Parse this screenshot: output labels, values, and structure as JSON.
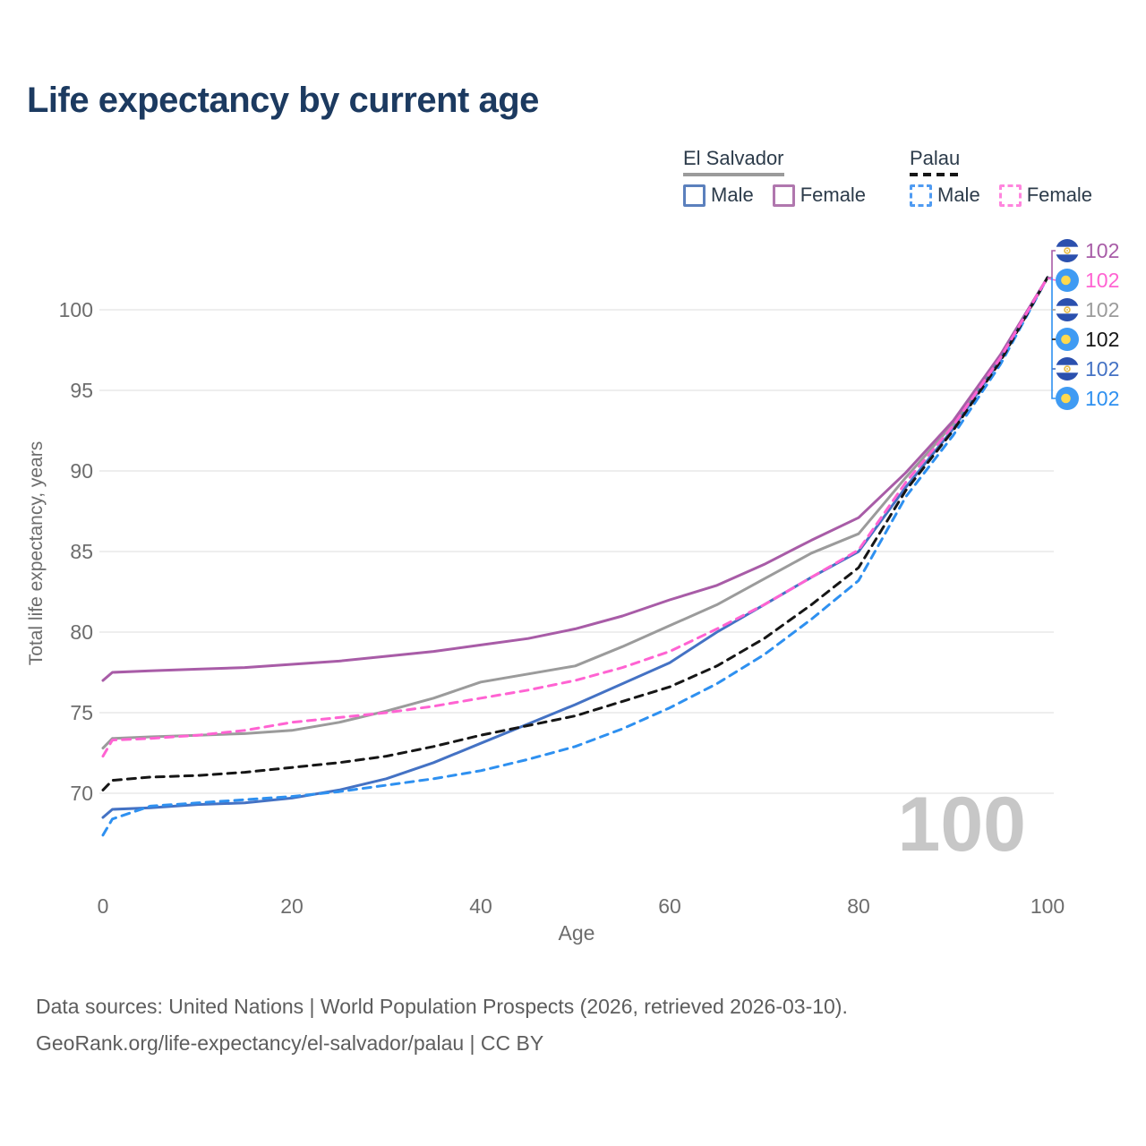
{
  "page": {
    "title": "Life expectancy by current age"
  },
  "legend": {
    "groups": [
      {
        "id": "el-salvador",
        "label": "El Salvador",
        "line_style": "solid",
        "rule_color": "#9b9b9b",
        "items": [
          {
            "id": "es-male",
            "label": "Male",
            "swatch_color": "#5b80bd",
            "dashed": false
          },
          {
            "id": "es-female",
            "label": "Female",
            "swatch_color": "#b077ae",
            "dashed": false
          }
        ]
      },
      {
        "id": "palau",
        "label": "Palau",
        "line_style": "dashed",
        "rule_color": "#161616",
        "items": [
          {
            "id": "pw-male",
            "label": "Male",
            "swatch_color": "#4f9bf2",
            "dashed": true
          },
          {
            "id": "pw-female",
            "label": "Female",
            "swatch_color": "#ff85de",
            "dashed": true
          }
        ]
      }
    ]
  },
  "footer": {
    "line1": "Data sources: United Nations | World Population Prospects (2026, retrieved 2026-03-10).",
    "line2": "GeoRank.org/life-expectancy/el-salvador/palau | CC BY"
  },
  "chart_data": {
    "type": "line",
    "title": "Life expectancy by current age",
    "xlabel": "Age",
    "ylabel": "Total life expectancy, years",
    "xlim": [
      0,
      100
    ],
    "ylim": [
      65,
      103
    ],
    "xticks": [
      0,
      20,
      40,
      60,
      80,
      100
    ],
    "yticks": [
      70,
      75,
      80,
      85,
      90,
      95,
      100
    ],
    "grid": "horizontal",
    "legend_position": "top-right",
    "age_indicator": "100",
    "ages": [
      0,
      1,
      5,
      10,
      15,
      20,
      25,
      30,
      35,
      40,
      45,
      50,
      55,
      60,
      65,
      70,
      75,
      80,
      85,
      90,
      95,
      100
    ],
    "series": [
      {
        "id": "es-female",
        "country": "El Salvador",
        "sex": "Female",
        "color": "#a85ca7",
        "dash": "solid",
        "flag": "sv",
        "end_label": "102",
        "end_value": 102,
        "values": [
          77.0,
          77.5,
          77.6,
          77.7,
          77.8,
          78.0,
          78.2,
          78.5,
          78.8,
          79.2,
          79.6,
          80.2,
          81.0,
          82.0,
          82.9,
          84.2,
          85.7,
          87.1,
          89.9,
          93.1,
          97.2,
          102
        ]
      },
      {
        "id": "pw-female",
        "country": "Palau",
        "sex": "Female",
        "color": "#ff63d2",
        "dash": "dashed",
        "flag": "pw",
        "end_label": "102",
        "end_value": 102,
        "values": [
          72.3,
          73.3,
          73.4,
          73.6,
          73.9,
          74.4,
          74.7,
          75.0,
          75.4,
          75.9,
          76.4,
          77.0,
          77.8,
          78.8,
          80.2,
          81.7,
          83.4,
          85.1,
          89.3,
          92.8,
          97.0,
          102
        ]
      },
      {
        "id": "es-both",
        "country": "El Salvador",
        "sex": "Both sexes",
        "color": "#9b9b9b",
        "dash": "solid",
        "flag": "sv",
        "end_label": "102",
        "end_value": 102,
        "values": [
          72.8,
          73.4,
          73.5,
          73.6,
          73.7,
          73.9,
          74.4,
          75.1,
          75.9,
          76.9,
          77.4,
          77.9,
          79.1,
          80.4,
          81.7,
          83.3,
          84.9,
          86.1,
          89.6,
          92.9,
          97.1,
          102
        ]
      },
      {
        "id": "pw-both",
        "country": "Palau",
        "sex": "Both sexes",
        "color": "#161616",
        "dash": "dashed",
        "flag": "pw",
        "end_label": "102",
        "end_value": 102,
        "values": [
          70.2,
          70.8,
          71.0,
          71.1,
          71.3,
          71.6,
          71.9,
          72.3,
          72.9,
          73.6,
          74.2,
          74.8,
          75.7,
          76.6,
          77.9,
          79.6,
          81.7,
          84.0,
          88.8,
          92.5,
          96.8,
          102
        ]
      },
      {
        "id": "es-male",
        "country": "El Salvador",
        "sex": "Male",
        "color": "#4472c4",
        "dash": "solid",
        "flag": "sv",
        "end_label": "102",
        "end_value": 102,
        "values": [
          68.5,
          69.0,
          69.1,
          69.3,
          69.4,
          69.7,
          70.2,
          70.9,
          71.9,
          73.1,
          74.3,
          75.5,
          76.8,
          78.1,
          80.0,
          81.7,
          83.4,
          85.0,
          89.0,
          92.6,
          96.9,
          102
        ]
      },
      {
        "id": "pw-male",
        "country": "Palau",
        "sex": "Male",
        "color": "#2e90f0",
        "dash": "dashed",
        "flag": "pw",
        "end_label": "102",
        "end_value": 102,
        "values": [
          67.4,
          68.4,
          69.2,
          69.4,
          69.6,
          69.8,
          70.1,
          70.5,
          70.9,
          71.4,
          72.1,
          72.9,
          74.0,
          75.3,
          76.8,
          78.6,
          80.8,
          83.2,
          88.4,
          92.2,
          96.6,
          102
        ]
      }
    ],
    "draw_order": [
      "es-both",
      "es-female",
      "es-male",
      "pw-male",
      "pw-both",
      "pw-female"
    ],
    "end_label_order": [
      "es-female",
      "pw-female",
      "es-both",
      "pw-both",
      "es-male",
      "pw-male"
    ]
  },
  "style": {
    "grid_color": "#e9e9e9",
    "tick_color": "#6d6d6d",
    "watermark_color": "#c7c7c7",
    "flag_colors": {
      "sv_blue": "#2b50ae",
      "sv_white": "#ffffff",
      "sv_gold": "#e6bc4a",
      "pw_blue": "#3f9bf3",
      "pw_yellow": "#ffd94e"
    }
  }
}
